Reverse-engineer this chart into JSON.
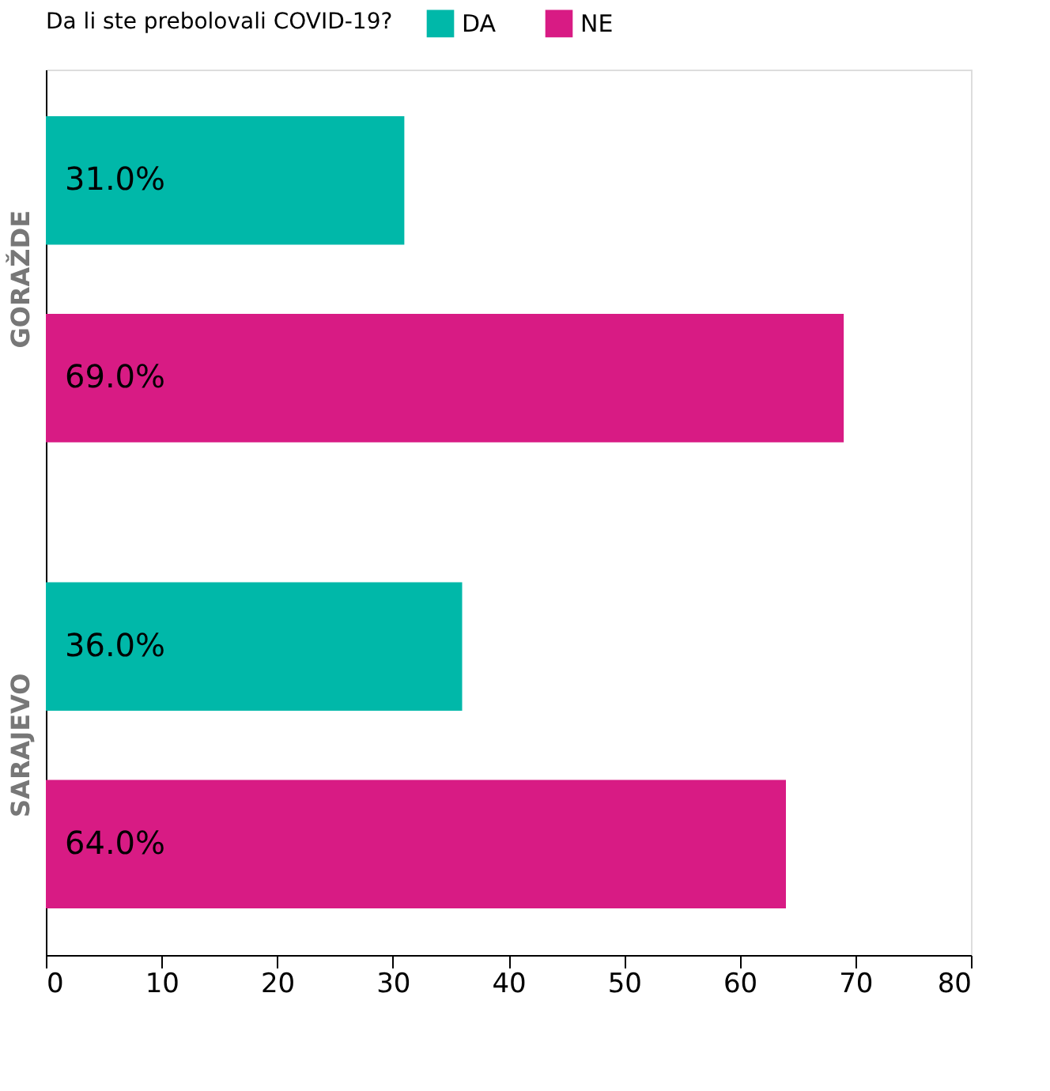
{
  "chart_data": {
    "type": "bar",
    "orientation": "horizontal",
    "legend_title": "Da li ste prebolovali COVID-19?",
    "legend": "top",
    "categories": [
      "GORAŽDE",
      "SARAJEVO"
    ],
    "series": [
      {
        "name": "DA",
        "color": "#00b8a9",
        "values": [
          31.0,
          36.0
        ],
        "value_labels": [
          "31.0%",
          "36.0%"
        ]
      },
      {
        "name": "NE",
        "color": "#d81b84",
        "values": [
          69.0,
          64.0
        ],
        "value_labels": [
          "69.0%",
          "64.0%"
        ]
      }
    ],
    "xlim": [
      0,
      80
    ],
    "xticks": [
      0,
      10,
      20,
      30,
      40,
      50,
      60,
      70,
      80
    ],
    "grid": false
  }
}
